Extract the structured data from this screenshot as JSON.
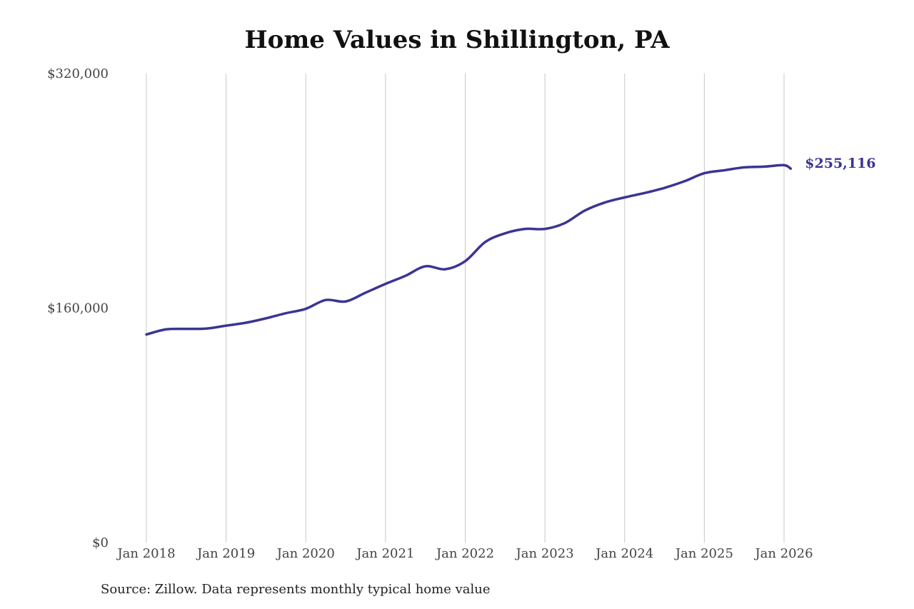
{
  "chart_data": {
    "type": "line",
    "title": "Home Values in Shillington, PA",
    "source": "Source: Zillow. Data represents monthly typical home value",
    "xlabel": "",
    "ylabel": "",
    "ylim": [
      0,
      320000
    ],
    "y_ticks": [
      {
        "value": 0,
        "label": "$0"
      },
      {
        "value": 160000,
        "label": "$160,000"
      },
      {
        "value": 320000,
        "label": "$320,000"
      }
    ],
    "x_ticks": [
      {
        "value": "2018-01",
        "label": "Jan 2018"
      },
      {
        "value": "2019-01",
        "label": "Jan 2019"
      },
      {
        "value": "2020-01",
        "label": "Jan 2020"
      },
      {
        "value": "2021-01",
        "label": "Jan 2021"
      },
      {
        "value": "2022-01",
        "label": "Jan 2022"
      },
      {
        "value": "2023-01",
        "label": "Jan 2023"
      },
      {
        "value": "2024-01",
        "label": "Jan 2024"
      },
      {
        "value": "2025-01",
        "label": "Jan 2025"
      },
      {
        "value": "2026-01",
        "label": "Jan 2026"
      }
    ],
    "grid": {
      "vertical": true,
      "horizontal": false
    },
    "colors": {
      "line": "#3b3494",
      "grid": "#c8c8c8",
      "text": "#444444"
    },
    "end_label": "$255,116",
    "series": [
      {
        "points": [
          {
            "x": "2018-01",
            "y": 142000
          },
          {
            "x": "2018-04",
            "y": 145500
          },
          {
            "x": "2018-07",
            "y": 145800
          },
          {
            "x": "2018-10",
            "y": 146000
          },
          {
            "x": "2019-01",
            "y": 148000
          },
          {
            "x": "2019-04",
            "y": 150000
          },
          {
            "x": "2019-07",
            "y": 153000
          },
          {
            "x": "2019-10",
            "y": 156500
          },
          {
            "x": "2020-01",
            "y": 159500
          },
          {
            "x": "2020-04",
            "y": 165500
          },
          {
            "x": "2020-07",
            "y": 164500
          },
          {
            "x": "2020-10",
            "y": 170500
          },
          {
            "x": "2021-01",
            "y": 176500
          },
          {
            "x": "2021-04",
            "y": 182000
          },
          {
            "x": "2021-07",
            "y": 188500
          },
          {
            "x": "2021-10",
            "y": 186500
          },
          {
            "x": "2022-01",
            "y": 192000
          },
          {
            "x": "2022-04",
            "y": 205000
          },
          {
            "x": "2022-07",
            "y": 211000
          },
          {
            "x": "2022-10",
            "y": 214000
          },
          {
            "x": "2023-01",
            "y": 214000
          },
          {
            "x": "2023-04",
            "y": 218000
          },
          {
            "x": "2023-07",
            "y": 226500
          },
          {
            "x": "2023-10",
            "y": 232000
          },
          {
            "x": "2024-01",
            "y": 235500
          },
          {
            "x": "2024-04",
            "y": 238500
          },
          {
            "x": "2024-07",
            "y": 242000
          },
          {
            "x": "2024-10",
            "y": 246500
          },
          {
            "x": "2025-01",
            "y": 252000
          },
          {
            "x": "2025-04",
            "y": 254000
          },
          {
            "x": "2025-07",
            "y": 256000
          },
          {
            "x": "2025-10",
            "y": 256500
          },
          {
            "x": "2026-01",
            "y": 257500
          },
          {
            "x": "2026-02",
            "y": 255116
          }
        ]
      }
    ]
  }
}
